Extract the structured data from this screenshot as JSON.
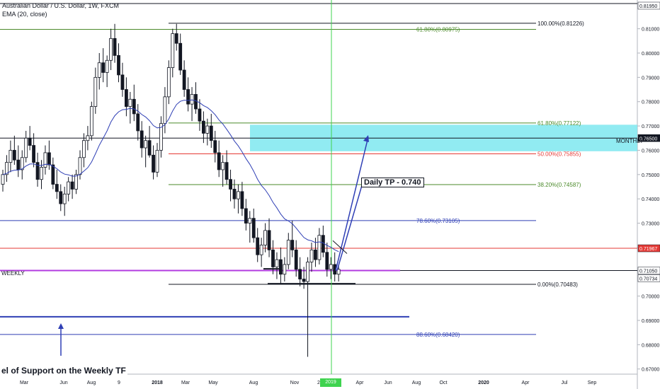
{
  "header": {
    "symbol": "Australian Dollar / U.S. Dollar, 1W, FXCM",
    "indicator": "EMA (20, close)"
  },
  "labels": {
    "support": "el of Support on the Weekly TF",
    "weekly": "WEEKLY",
    "monthly": "MONTHLY",
    "tp": "Daily TP - 0.740"
  },
  "fib_levels": [
    {
      "label": "100.00%(0.81226)",
      "value": 0.81226,
      "color": "#131722"
    },
    {
      "label": "61.80%(0.80975)",
      "value": 0.80975,
      "color": "#4b8a2a"
    },
    {
      "label": "61.80%(0.77122)",
      "value": 0.77122,
      "color": "#4b8a2a"
    },
    {
      "label": "50.00%(0.75855)",
      "value": 0.75855,
      "color": "#e53935"
    },
    {
      "label": "38.20%(0.74587)",
      "value": 0.74587,
      "color": "#4b8a2a"
    },
    {
      "label": "78.60%(0.73105)",
      "value": 0.73105,
      "color": "#2f3fb5"
    },
    {
      "label": "0.00%(0.70483)",
      "value": 0.70483,
      "color": "#131722"
    },
    {
      "label": "88.60%(0.68420)",
      "value": 0.6842,
      "color": "#2f3fb5"
    }
  ],
  "price_axis": {
    "ticks": [
      "0.81000",
      "0.80000",
      "0.79000",
      "0.78000",
      "0.77000",
      "0.76000",
      "0.75000",
      "0.74000",
      "0.73000",
      "0.72000",
      "0.71000",
      "0.70000",
      "0.69000",
      "0.68000",
      "0.67000"
    ],
    "badges": [
      {
        "label": "0.81950",
        "value": 0.8195,
        "bg": "#ffffff",
        "fg": "#131722"
      },
      {
        "label": "0.76500",
        "value": 0.765,
        "bg": "#131722",
        "fg": "#ffffff"
      },
      {
        "label": "0.71967",
        "value": 0.71967,
        "bg": "#e53935",
        "fg": "#ffffff"
      },
      {
        "label": "0.71050",
        "value": 0.7105,
        "bg": "#ffffff",
        "fg": "#131722"
      },
      {
        "label": "0.70734",
        "value": 0.70734,
        "bg": "#ffffff",
        "fg": "#131722"
      }
    ]
  },
  "time_axis": {
    "labels": [
      "Mar",
      "Jun",
      "Aug",
      "9",
      "2018",
      "Mar",
      "May",
      "Aug",
      "Nov",
      "2",
      "Apr",
      "Jun",
      "Aug",
      "Oct",
      "2020",
      "Apr",
      "Jul",
      "Sep"
    ],
    "today_label": "2019"
  },
  "chart_data": {
    "type": "candlestick",
    "ylim": [
      0.665,
      0.8205
    ],
    "ema_period": 20,
    "candles": [
      [
        0.746,
        0.752,
        0.743,
        0.75
      ],
      [
        0.75,
        0.758,
        0.747,
        0.755
      ],
      [
        0.755,
        0.764,
        0.751,
        0.76
      ],
      [
        0.76,
        0.766,
        0.754,
        0.756
      ],
      [
        0.756,
        0.762,
        0.749,
        0.752
      ],
      [
        0.752,
        0.76,
        0.748,
        0.757
      ],
      [
        0.757,
        0.768,
        0.755,
        0.765
      ],
      [
        0.765,
        0.77,
        0.76,
        0.762
      ],
      [
        0.762,
        0.767,
        0.753,
        0.755
      ],
      [
        0.755,
        0.759,
        0.745,
        0.748
      ],
      [
        0.748,
        0.756,
        0.744,
        0.753
      ],
      [
        0.753,
        0.762,
        0.75,
        0.759
      ],
      [
        0.759,
        0.764,
        0.752,
        0.754
      ],
      [
        0.754,
        0.757,
        0.744,
        0.746
      ],
      [
        0.746,
        0.752,
        0.74,
        0.743
      ],
      [
        0.743,
        0.746,
        0.735,
        0.738
      ],
      [
        0.738,
        0.745,
        0.733,
        0.742
      ],
      [
        0.742,
        0.749,
        0.739,
        0.747
      ],
      [
        0.747,
        0.75,
        0.74,
        0.744
      ],
      [
        0.744,
        0.752,
        0.742,
        0.75
      ],
      [
        0.75,
        0.76,
        0.748,
        0.757
      ],
      [
        0.757,
        0.767,
        0.753,
        0.764
      ],
      [
        0.764,
        0.77,
        0.76,
        0.766
      ],
      [
        0.766,
        0.78,
        0.764,
        0.778
      ],
      [
        0.778,
        0.794,
        0.775,
        0.79
      ],
      [
        0.79,
        0.8,
        0.785,
        0.796
      ],
      [
        0.796,
        0.802,
        0.788,
        0.792
      ],
      [
        0.792,
        0.799,
        0.786,
        0.797
      ],
      [
        0.797,
        0.81,
        0.793,
        0.806
      ],
      [
        0.806,
        0.812,
        0.796,
        0.799
      ],
      [
        0.799,
        0.804,
        0.788,
        0.791
      ],
      [
        0.791,
        0.796,
        0.782,
        0.785
      ],
      [
        0.785,
        0.79,
        0.774,
        0.778
      ],
      [
        0.778,
        0.784,
        0.771,
        0.781
      ],
      [
        0.781,
        0.787,
        0.772,
        0.775
      ],
      [
        0.775,
        0.779,
        0.764,
        0.768
      ],
      [
        0.768,
        0.772,
        0.757,
        0.761
      ],
      [
        0.761,
        0.766,
        0.753,
        0.764
      ],
      [
        0.764,
        0.77,
        0.757,
        0.758
      ],
      [
        0.758,
        0.762,
        0.748,
        0.751
      ],
      [
        0.751,
        0.763,
        0.749,
        0.76
      ],
      [
        0.76,
        0.774,
        0.757,
        0.771
      ],
      [
        0.771,
        0.786,
        0.767,
        0.782
      ],
      [
        0.782,
        0.797,
        0.779,
        0.794
      ],
      [
        0.794,
        0.81,
        0.79,
        0.808
      ],
      [
        0.808,
        0.812,
        0.801,
        0.804
      ],
      [
        0.804,
        0.808,
        0.791,
        0.793
      ],
      [
        0.793,
        0.797,
        0.782,
        0.785
      ],
      [
        0.785,
        0.79,
        0.776,
        0.779
      ],
      [
        0.779,
        0.786,
        0.772,
        0.783
      ],
      [
        0.783,
        0.788,
        0.775,
        0.777
      ],
      [
        0.777,
        0.781,
        0.768,
        0.772
      ],
      [
        0.772,
        0.776,
        0.763,
        0.767
      ],
      [
        0.767,
        0.773,
        0.762,
        0.77
      ],
      [
        0.77,
        0.775,
        0.761,
        0.764
      ],
      [
        0.764,
        0.768,
        0.755,
        0.759
      ],
      [
        0.759,
        0.764,
        0.749,
        0.752
      ],
      [
        0.752,
        0.758,
        0.745,
        0.755
      ],
      [
        0.755,
        0.76,
        0.746,
        0.748
      ],
      [
        0.748,
        0.752,
        0.739,
        0.744
      ],
      [
        0.744,
        0.748,
        0.736,
        0.74
      ],
      [
        0.74,
        0.746,
        0.734,
        0.743
      ],
      [
        0.743,
        0.747,
        0.733,
        0.736
      ],
      [
        0.736,
        0.74,
        0.727,
        0.73
      ],
      [
        0.73,
        0.735,
        0.722,
        0.732
      ],
      [
        0.732,
        0.736,
        0.722,
        0.724
      ],
      [
        0.724,
        0.728,
        0.714,
        0.717
      ],
      [
        0.717,
        0.724,
        0.712,
        0.721
      ],
      [
        0.721,
        0.73,
        0.718,
        0.727
      ],
      [
        0.727,
        0.732,
        0.716,
        0.719
      ],
      [
        0.719,
        0.723,
        0.709,
        0.712
      ],
      [
        0.712,
        0.718,
        0.707,
        0.715
      ],
      [
        0.715,
        0.72,
        0.705,
        0.709
      ],
      [
        0.709,
        0.716,
        0.706,
        0.713
      ],
      [
        0.713,
        0.726,
        0.711,
        0.723
      ],
      [
        0.723,
        0.731,
        0.716,
        0.719
      ],
      [
        0.719,
        0.723,
        0.708,
        0.711
      ],
      [
        0.711,
        0.716,
        0.704,
        0.707
      ],
      [
        0.707,
        0.712,
        0.703,
        0.706
      ],
      [
        0.706,
        0.716,
        0.675,
        0.714
      ],
      [
        0.714,
        0.722,
        0.71,
        0.719
      ],
      [
        0.719,
        0.724,
        0.712,
        0.715
      ],
      [
        0.715,
        0.728,
        0.713,
        0.725
      ],
      [
        0.725,
        0.729,
        0.716,
        0.718
      ],
      [
        0.718,
        0.722,
        0.708,
        0.711
      ],
      [
        0.711,
        0.716,
        0.707,
        0.713
      ],
      [
        0.713,
        0.718,
        0.706,
        0.709
      ],
      [
        0.709,
        0.713,
        0.706,
        0.711
      ]
    ]
  }
}
